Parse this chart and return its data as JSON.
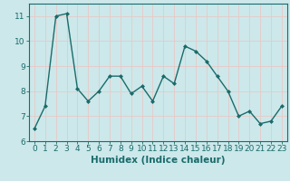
{
  "x": [
    0,
    1,
    2,
    3,
    4,
    5,
    6,
    7,
    8,
    9,
    10,
    11,
    12,
    13,
    14,
    15,
    16,
    17,
    18,
    19,
    20,
    21,
    22,
    23
  ],
  "y": [
    6.5,
    7.4,
    11.0,
    11.1,
    8.1,
    7.6,
    8.0,
    8.6,
    8.6,
    7.9,
    8.2,
    7.6,
    8.6,
    8.3,
    9.8,
    9.6,
    9.2,
    8.6,
    8.0,
    7.0,
    7.2,
    6.7,
    6.8,
    7.4
  ],
  "line_color": "#1a6b6b",
  "marker": "D",
  "marker_size": 2.0,
  "linewidth": 1.0,
  "bg_color": "#cce8ea",
  "grid_color": "#e8c8c8",
  "xlabel": "Humidex (Indice chaleur)",
  "xlim": [
    -0.5,
    23.5
  ],
  "ylim": [
    6,
    11.5
  ],
  "yticks": [
    6,
    7,
    8,
    9,
    10,
    11
  ],
  "xticks": [
    0,
    1,
    2,
    3,
    4,
    5,
    6,
    7,
    8,
    9,
    10,
    11,
    12,
    13,
    14,
    15,
    16,
    17,
    18,
    19,
    20,
    21,
    22,
    23
  ],
  "tick_fontsize": 6.5,
  "xlabel_fontsize": 7.5
}
